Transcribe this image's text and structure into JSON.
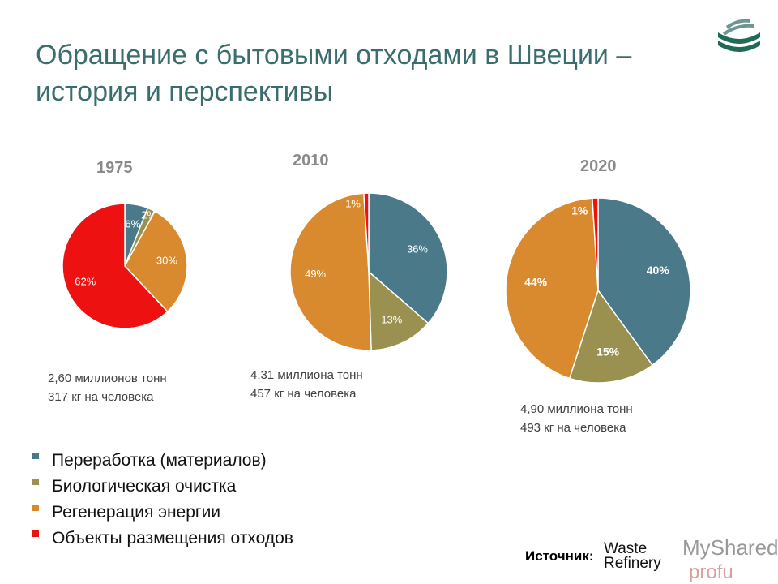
{
  "title": "Обращение с бытовыми отходами в Швеции – история и перспективы",
  "colors": {
    "recycling": "#4a7a8a",
    "biological": "#9a9050",
    "energy": "#d98a2e",
    "landfill": "#ee1111"
  },
  "chart_data": [
    {
      "type": "pie",
      "title": "1975",
      "categories": [
        "Переработка (материалов)",
        "Биологическая очистка",
        "Регенерация энергии",
        "Объекты размещения отходов"
      ],
      "values": [
        6,
        2,
        30,
        62
      ],
      "labels": [
        "6%",
        "2%",
        "30%",
        "62%"
      ],
      "info": [
        "2,60 миллионов тонн",
        "317 кг на человека"
      ]
    },
    {
      "type": "pie",
      "title": "2010",
      "categories": [
        "Переработка (материалов)",
        "Биологическая очистка",
        "Регенерация энергии",
        "Объекты размещения отходов"
      ],
      "values": [
        36,
        13,
        49,
        1
      ],
      "labels": [
        "36%",
        "13%",
        "49%",
        "1%"
      ],
      "info": [
        "4,31 миллиона тонн",
        "457 кг на человека"
      ]
    },
    {
      "type": "pie",
      "title": "2020",
      "categories": [
        "Переработка (материалов)",
        "Биологическая очистка",
        "Регенерация энергии",
        "Объекты размещения отходов"
      ],
      "values": [
        40,
        15,
        44,
        1
      ],
      "labels": [
        "40%",
        "15%",
        "44%",
        "1%"
      ],
      "info": [
        "4,90 миллиона тонн",
        "493 кг на человека"
      ]
    }
  ],
  "legend": [
    "Переработка (материалов)",
    "Биологическая очистка",
    "Регенерация энергии",
    "Объекты размещения отходов"
  ],
  "source": {
    "label": "Источник:",
    "logo_text": "Waste Refinery"
  },
  "watermark": {
    "text": "MyShared",
    "sub": "profu"
  }
}
